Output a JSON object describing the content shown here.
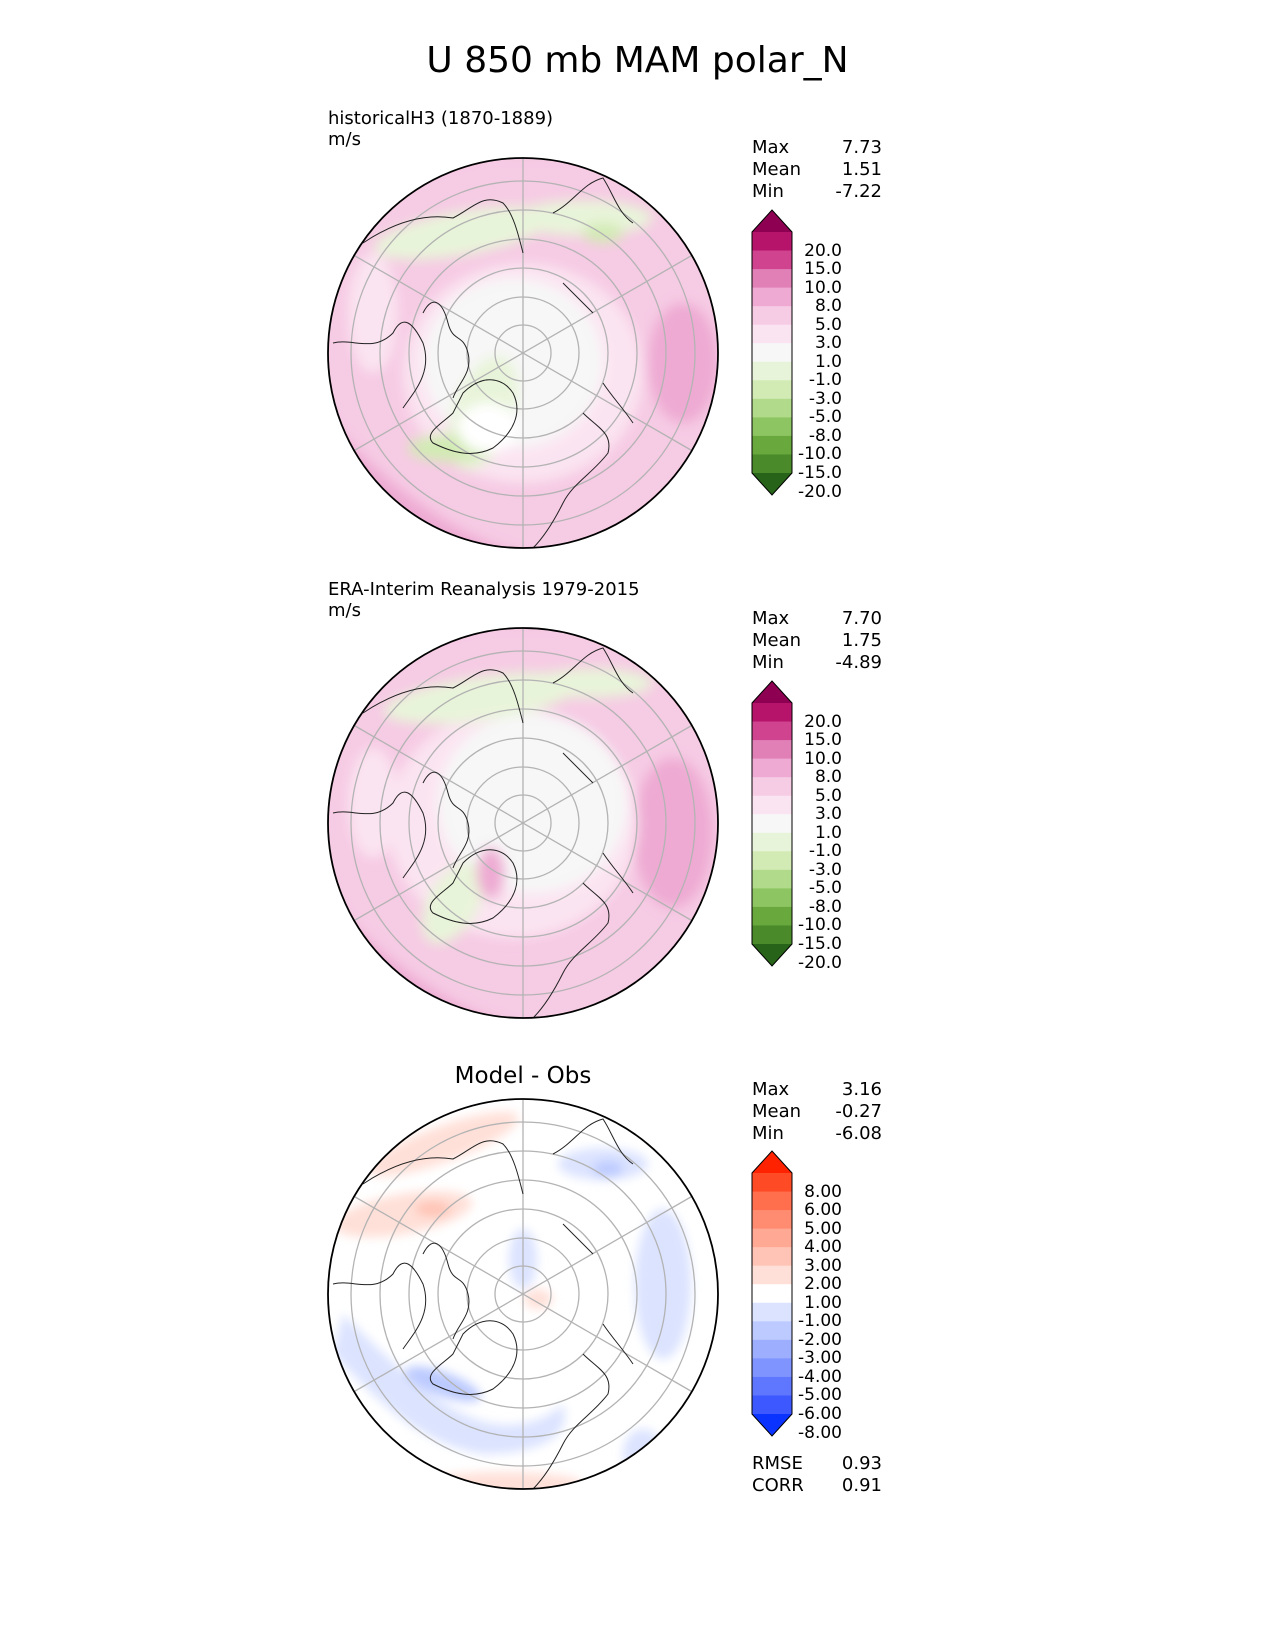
{
  "suptitle": "U 850 mb MAM polar_N",
  "panels": [
    {
      "title_line1": "historicalH3 (1870-1889)",
      "title_line2": "m/s",
      "stats": [
        {
          "label": "Max",
          "value": "7.73"
        },
        {
          "label": "Mean",
          "value": "1.51"
        },
        {
          "label": "Min",
          "value": "-7.22"
        }
      ],
      "colorbar": {
        "levels": [
          "20.0",
          "15.0",
          "10.0",
          "8.0",
          "5.0",
          "3.0",
          "1.0",
          "-1.0",
          "-3.0",
          "-5.0",
          "-8.0",
          "-10.0",
          "-15.0",
          "-20.0"
        ],
        "colors": [
          "#8e0152",
          "#b5146a",
          "#d0438f",
          "#e17fb7",
          "#eeaad3",
          "#f6cbe4",
          "#fbe4f1",
          "#f7f7f7",
          "#e8f4d9",
          "#d2ebb4",
          "#b1db8a",
          "#8cc562",
          "#69a83c",
          "#4a8a2b",
          "#276419"
        ]
      }
    },
    {
      "title_line1": "ERA-Interim Reanalysis 1979-2015",
      "title_line2": "m/s",
      "stats": [
        {
          "label": "Max",
          "value": "7.70"
        },
        {
          "label": "Mean",
          "value": "1.75"
        },
        {
          "label": "Min",
          "value": "-4.89"
        }
      ],
      "colorbar": {
        "levels": [
          "20.0",
          "15.0",
          "10.0",
          "8.0",
          "5.0",
          "3.0",
          "1.0",
          "-1.0",
          "-3.0",
          "-5.0",
          "-8.0",
          "-10.0",
          "-15.0",
          "-20.0"
        ],
        "colors": [
          "#8e0152",
          "#b5146a",
          "#d0438f",
          "#e17fb7",
          "#eeaad3",
          "#f6cbe4",
          "#fbe4f1",
          "#f7f7f7",
          "#e8f4d9",
          "#d2ebb4",
          "#b1db8a",
          "#8cc562",
          "#69a83c",
          "#4a8a2b",
          "#276419"
        ]
      }
    },
    {
      "title_center": "Model - Obs",
      "stats": [
        {
          "label": "Max",
          "value": "3.16"
        },
        {
          "label": "Mean",
          "value": "-0.27"
        },
        {
          "label": "Min",
          "value": "-6.08"
        }
      ],
      "colorbar": {
        "levels": [
          "8.00",
          "6.00",
          "5.00",
          "4.00",
          "3.00",
          "2.00",
          "1.00",
          "-1.00",
          "-2.00",
          "-3.00",
          "-4.00",
          "-5.00",
          "-6.00",
          "-8.00"
        ],
        "colors": [
          "#ff2200",
          "#ff4a26",
          "#ff6e4d",
          "#ff8b70",
          "#ffa994",
          "#ffc4b6",
          "#ffe0d8",
          "#ffffff",
          "#dbe3ff",
          "#bccaff",
          "#9daeff",
          "#7f94ff",
          "#5f76ff",
          "#3e58ff",
          "#0b33ff"
        ]
      },
      "extra_stats": [
        {
          "label": "RMSE",
          "value": "0.93"
        },
        {
          "label": "CORR",
          "value": "0.91"
        }
      ]
    }
  ],
  "chart_data": [
    {
      "type": "heatmap",
      "title": "historicalH3 (1870-1889)",
      "units": "m/s",
      "stats": {
        "max": 7.73,
        "mean": 1.51,
        "min": -7.22
      },
      "levels": [
        -20,
        -15,
        -10,
        -8,
        -5,
        -3,
        -1,
        1,
        3,
        5,
        8,
        10,
        15,
        20
      ]
    },
    {
      "type": "heatmap",
      "title": "ERA-Interim Reanalysis 1979-2015",
      "units": "m/s",
      "stats": {
        "max": 7.7,
        "mean": 1.75,
        "min": -4.89
      },
      "levels": [
        -20,
        -15,
        -10,
        -8,
        -5,
        -3,
        -1,
        1,
        3,
        5,
        8,
        10,
        15,
        20
      ]
    },
    {
      "type": "heatmap",
      "title": "Model - Obs",
      "stats": {
        "max": 3.16,
        "mean": -0.27,
        "min": -6.08,
        "rmse": 0.93,
        "corr": 0.91
      },
      "levels": [
        -8,
        -6,
        -5,
        -4,
        -3,
        -2,
        -1,
        1,
        2,
        3,
        4,
        5,
        6,
        8
      ]
    }
  ]
}
